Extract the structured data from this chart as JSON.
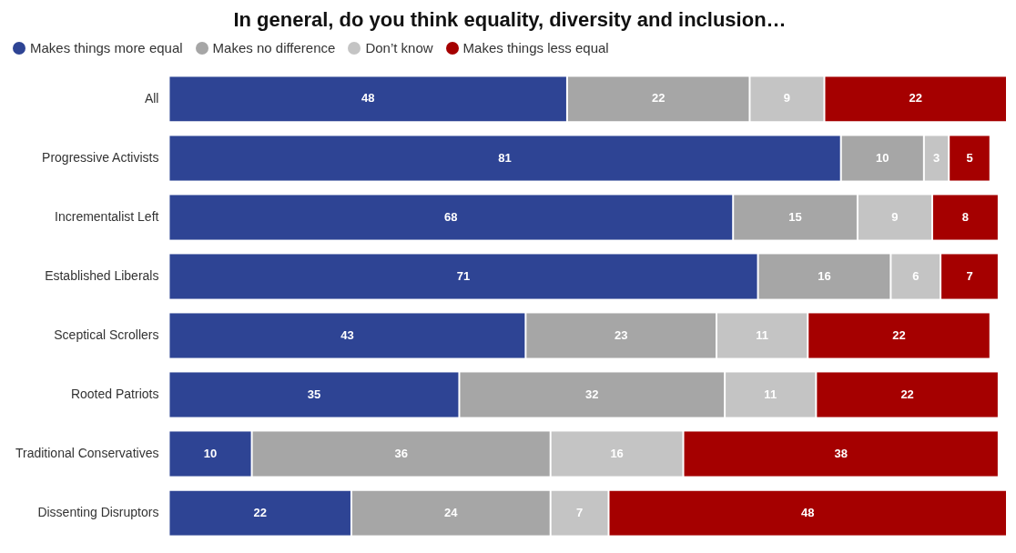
{
  "chart_data": {
    "type": "bar",
    "orientation": "horizontal",
    "stacked": true,
    "title": "In general, do you think equality, diversity and inclusion…",
    "categories": [
      "All",
      "Progressive Activists",
      "Incrementalist Left",
      "Established Liberals",
      "Sceptical Scrollers",
      "Rooted Patriots",
      "Traditional Conservatives",
      "Dissenting Disruptors"
    ],
    "series": [
      {
        "name": "Makes things more equal",
        "color": "#2e4494",
        "values": [
          48,
          81,
          68,
          71,
          43,
          35,
          10,
          22
        ]
      },
      {
        "name": "Makes no difference",
        "color": "#a6a6a6",
        "values": [
          22,
          10,
          15,
          16,
          23,
          32,
          36,
          24
        ]
      },
      {
        "name": "Don’t know",
        "color": "#c4c4c4",
        "values": [
          9,
          3,
          9,
          6,
          11,
          11,
          16,
          7
        ]
      },
      {
        "name": "Makes things less equal",
        "color": "#a50000",
        "values": [
          22,
          5,
          8,
          7,
          22,
          22,
          38,
          48
        ]
      }
    ],
    "xlim": [
      0,
      101
    ],
    "data_labels": true,
    "legend": "top left",
    "tick_labels": "y"
  }
}
